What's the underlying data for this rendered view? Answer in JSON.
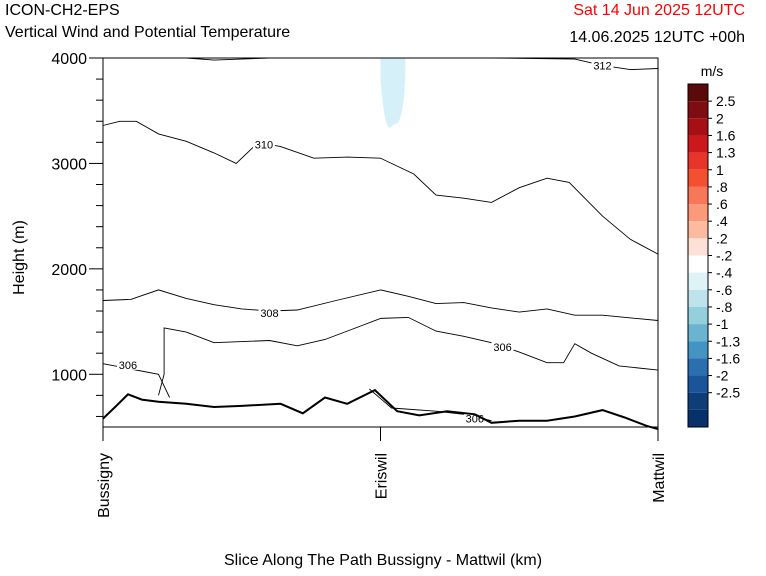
{
  "header": {
    "model": "ICON-CH2-EPS",
    "subtitle": "Vertical Wind and Potential Temperature",
    "run_time": "Sat 14 Jun 2025 12UTC",
    "valid_time": "14.06.2025 12UTC +00h"
  },
  "colors": {
    "run_time": "#ff0000",
    "contour": "#000000",
    "updraft_shade": "#d6f0fa"
  },
  "chart_data": {
    "type": "vertical cross-section",
    "xlabel": "Slice Along The Path Bussigny - Mattwil (km)",
    "ylabel": "Height (m)",
    "ylim": [
      500,
      4000
    ],
    "y_ticks": [
      1000,
      2000,
      3000,
      4000
    ],
    "x_ticks": [
      "Bussigny",
      "Eriswil",
      "Mattwil"
    ],
    "x_range": [
      0,
      1
    ],
    "colorbar": {
      "unit": "m/s",
      "labels": [
        "2.5",
        "2",
        "1.6",
        "1.3",
        "1",
        ".8",
        ".6",
        ".4",
        ".2",
        "-.2",
        "-.4",
        "-.6",
        "-.8",
        "-1",
        "-1.3",
        "-1.6",
        "-2",
        "-2.5"
      ],
      "colors": [
        "#5a0a0a",
        "#7d0d12",
        "#a50f15",
        "#cb181d",
        "#e8352a",
        "#f4502f",
        "#f7775a",
        "#fb9a7a",
        "#fcbba1",
        "#fde0d8",
        "#ffffff",
        "#dff2f8",
        "#bfe3ec",
        "#94cfdc",
        "#6bb4cf",
        "#4393c3",
        "#2c6fb0",
        "#1a559a",
        "#0e3d78",
        "#08306b"
      ]
    },
    "terrain": [
      [
        0,
        580
      ],
      [
        0.02,
        680
      ],
      [
        0.045,
        810
      ],
      [
        0.07,
        760
      ],
      [
        0.1,
        740
      ],
      [
        0.15,
        720
      ],
      [
        0.2,
        690
      ],
      [
        0.25,
        700
      ],
      [
        0.32,
        720
      ],
      [
        0.36,
        630
      ],
      [
        0.4,
        780
      ],
      [
        0.44,
        720
      ],
      [
        0.49,
        850
      ],
      [
        0.53,
        650
      ],
      [
        0.57,
        610
      ],
      [
        0.62,
        650
      ],
      [
        0.67,
        620
      ],
      [
        0.7,
        540
      ],
      [
        0.75,
        560
      ],
      [
        0.8,
        560
      ],
      [
        0.85,
        600
      ],
      [
        0.9,
        660
      ],
      [
        0.94,
        590
      ],
      [
        0.98,
        510
      ],
      [
        1,
        480
      ]
    ],
    "isentropes": [
      {
        "label": "306",
        "points": [
          [
            0,
            1100
          ],
          [
            0.05,
            1050
          ],
          [
            0.1,
            1000
          ],
          [
            0.12,
            780
          ]
        ],
        "label_at": [
          0.045,
          1090
        ]
      },
      {
        "label": "306",
        "points": [
          [
            0.1,
            800
          ],
          [
            0.11,
            1000
          ],
          [
            0.11,
            1440
          ],
          [
            0.15,
            1400
          ],
          [
            0.2,
            1300
          ],
          [
            0.25,
            1310
          ],
          [
            0.3,
            1320
          ],
          [
            0.35,
            1270
          ],
          [
            0.4,
            1330
          ],
          [
            0.45,
            1430
          ],
          [
            0.5,
            1530
          ],
          [
            0.55,
            1540
          ],
          [
            0.6,
            1410
          ],
          [
            0.65,
            1360
          ],
          [
            0.7,
            1300
          ],
          [
            0.75,
            1210
          ],
          [
            0.8,
            1110
          ],
          [
            0.83,
            1110
          ],
          [
            0.85,
            1290
          ],
          [
            0.88,
            1200
          ],
          [
            0.93,
            1080
          ],
          [
            1,
            1040
          ]
        ],
        "label_at": [
          0.72,
          1260
        ]
      },
      {
        "label": "306",
        "points": [
          [
            0.48,
            860
          ],
          [
            0.52,
            680
          ],
          [
            0.6,
            650
          ],
          [
            0.65,
            620
          ],
          [
            0.7,
            560
          ]
        ],
        "label_at": [
          0.67,
          580
        ]
      },
      {
        "label": "308",
        "points": [
          [
            0,
            1700
          ],
          [
            0.05,
            1710
          ],
          [
            0.1,
            1800
          ],
          [
            0.15,
            1720
          ],
          [
            0.2,
            1660
          ],
          [
            0.25,
            1620
          ],
          [
            0.3,
            1600
          ],
          [
            0.35,
            1610
          ],
          [
            0.42,
            1700
          ],
          [
            0.5,
            1800
          ],
          [
            0.55,
            1740
          ],
          [
            0.6,
            1670
          ],
          [
            0.65,
            1680
          ],
          [
            0.7,
            1630
          ],
          [
            0.75,
            1590
          ],
          [
            0.8,
            1620
          ],
          [
            0.85,
            1560
          ],
          [
            0.9,
            1560
          ],
          [
            1,
            1510
          ]
        ],
        "label_at": [
          0.3,
          1580
        ]
      },
      {
        "label": "310",
        "points": [
          [
            0,
            3360
          ],
          [
            0.03,
            3400
          ],
          [
            0.06,
            3400
          ],
          [
            0.1,
            3280
          ],
          [
            0.15,
            3210
          ],
          [
            0.2,
            3100
          ],
          [
            0.24,
            3000
          ],
          [
            0.28,
            3200
          ],
          [
            0.32,
            3160
          ],
          [
            0.38,
            3050
          ],
          [
            0.44,
            3060
          ],
          [
            0.5,
            3050
          ],
          [
            0.56,
            2900
          ],
          [
            0.6,
            2700
          ],
          [
            0.65,
            2670
          ],
          [
            0.7,
            2630
          ],
          [
            0.75,
            2770
          ],
          [
            0.8,
            2860
          ],
          [
            0.84,
            2820
          ],
          [
            0.87,
            2660
          ],
          [
            0.9,
            2500
          ],
          [
            0.95,
            2280
          ],
          [
            1,
            2140
          ]
        ],
        "label_at": [
          0.29,
          3180
        ]
      },
      {
        "label": "312",
        "points": [
          [
            0.15,
            4000
          ],
          [
            0.2,
            3980
          ],
          [
            0.3,
            4000
          ],
          [
            0.5,
            4000
          ],
          [
            0.7,
            4000
          ],
          [
            0.85,
            3990
          ],
          [
            0.9,
            3930
          ],
          [
            0.95,
            3890
          ],
          [
            1,
            3900
          ]
        ],
        "label_at": [
          0.9,
          3930
        ]
      }
    ],
    "updraft_region": {
      "x": [
        0.5,
        0.545
      ],
      "y": [
        3250,
        4000
      ],
      "sign": "negative",
      "band": "-.2"
    }
  }
}
